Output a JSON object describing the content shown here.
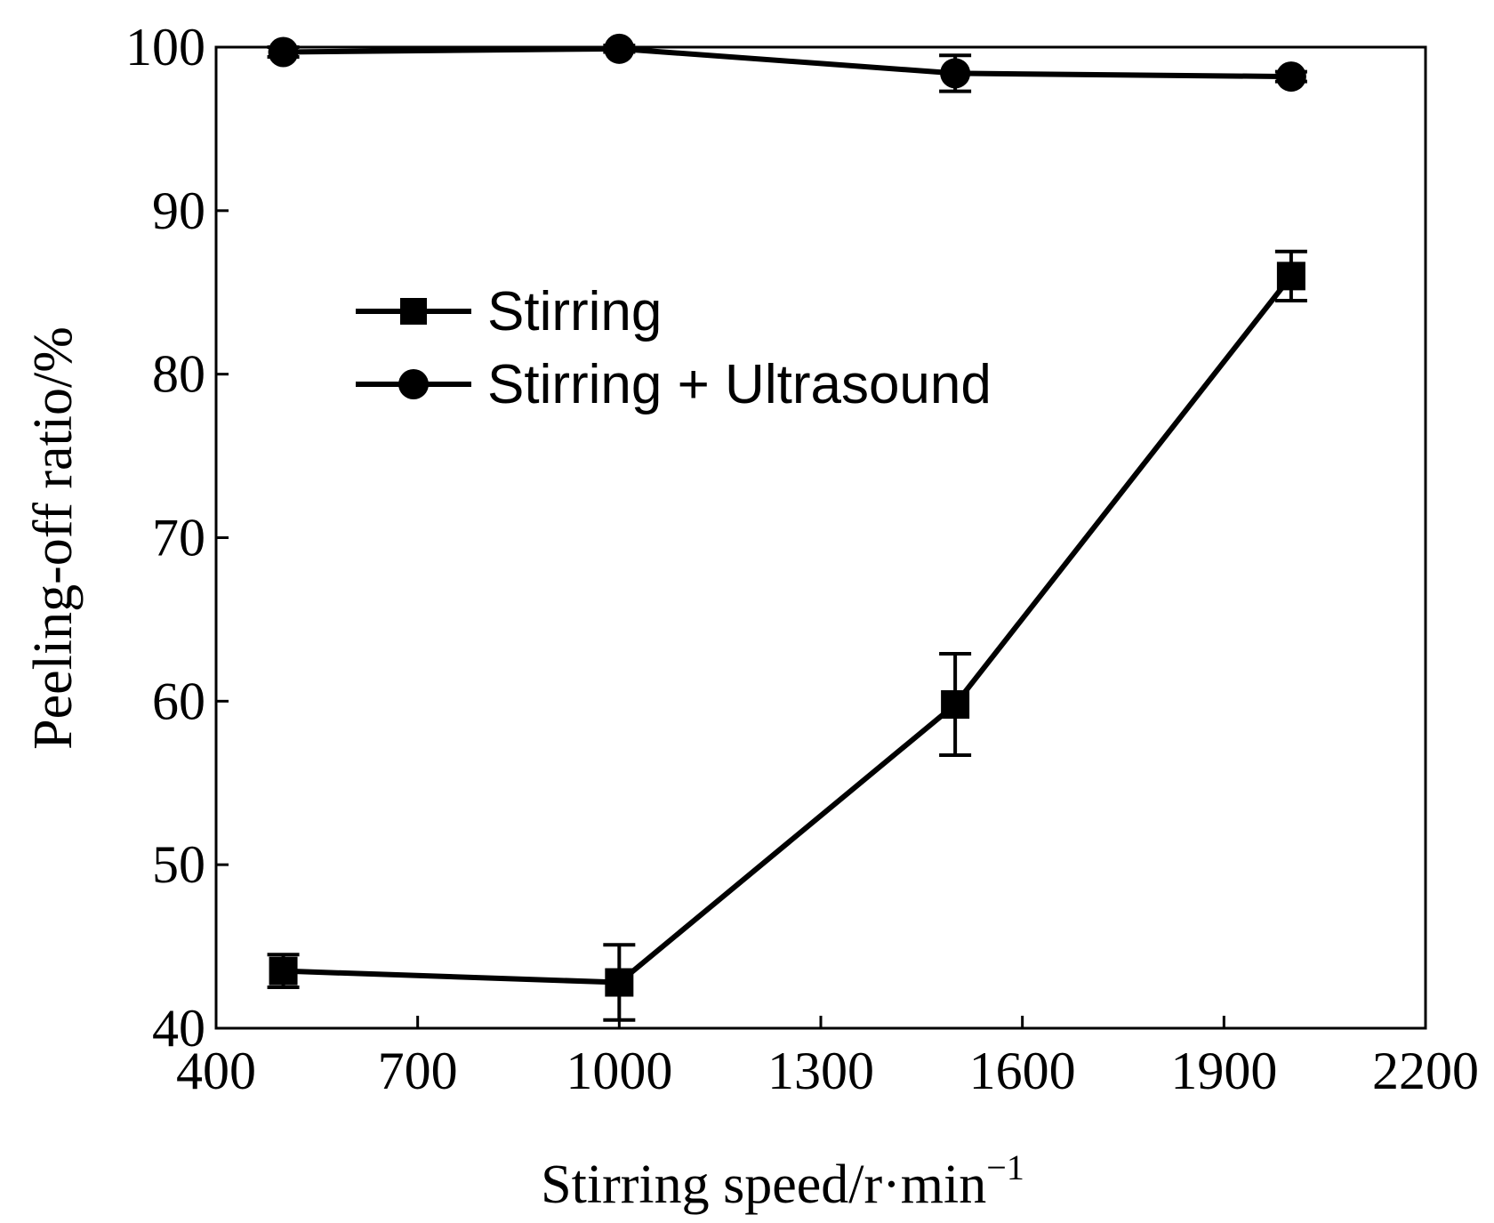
{
  "chart_data": {
    "type": "line",
    "title": "",
    "xlabel": "Stirring speed/r·min",
    "xlabel_superscript": "−1",
    "ylabel": "Peeling-off ratio/%",
    "xlim": [
      400,
      2200
    ],
    "ylim": [
      40,
      100
    ],
    "x_ticks": [
      400,
      700,
      1000,
      1300,
      1600,
      1900,
      2200
    ],
    "y_ticks": [
      40,
      50,
      60,
      70,
      80,
      90,
      100
    ],
    "grid": false,
    "legend_position": "upper-middle",
    "series": [
      {
        "name": "Stirring",
        "marker": "square",
        "color": "#000000",
        "x": [
          500,
          1000,
          1500,
          2000
        ],
        "values": [
          43.5,
          42.8,
          59.8,
          86.0
        ],
        "error": [
          1.0,
          2.3,
          3.1,
          1.5
        ]
      },
      {
        "name": "Stirring + Ultrasound",
        "marker": "circle",
        "color": "#000000",
        "x": [
          500,
          1000,
          1500,
          2000
        ],
        "values": [
          99.7,
          99.9,
          98.4,
          98.2
        ],
        "error": [
          0.3,
          0.2,
          1.1,
          0.3
        ]
      }
    ]
  }
}
